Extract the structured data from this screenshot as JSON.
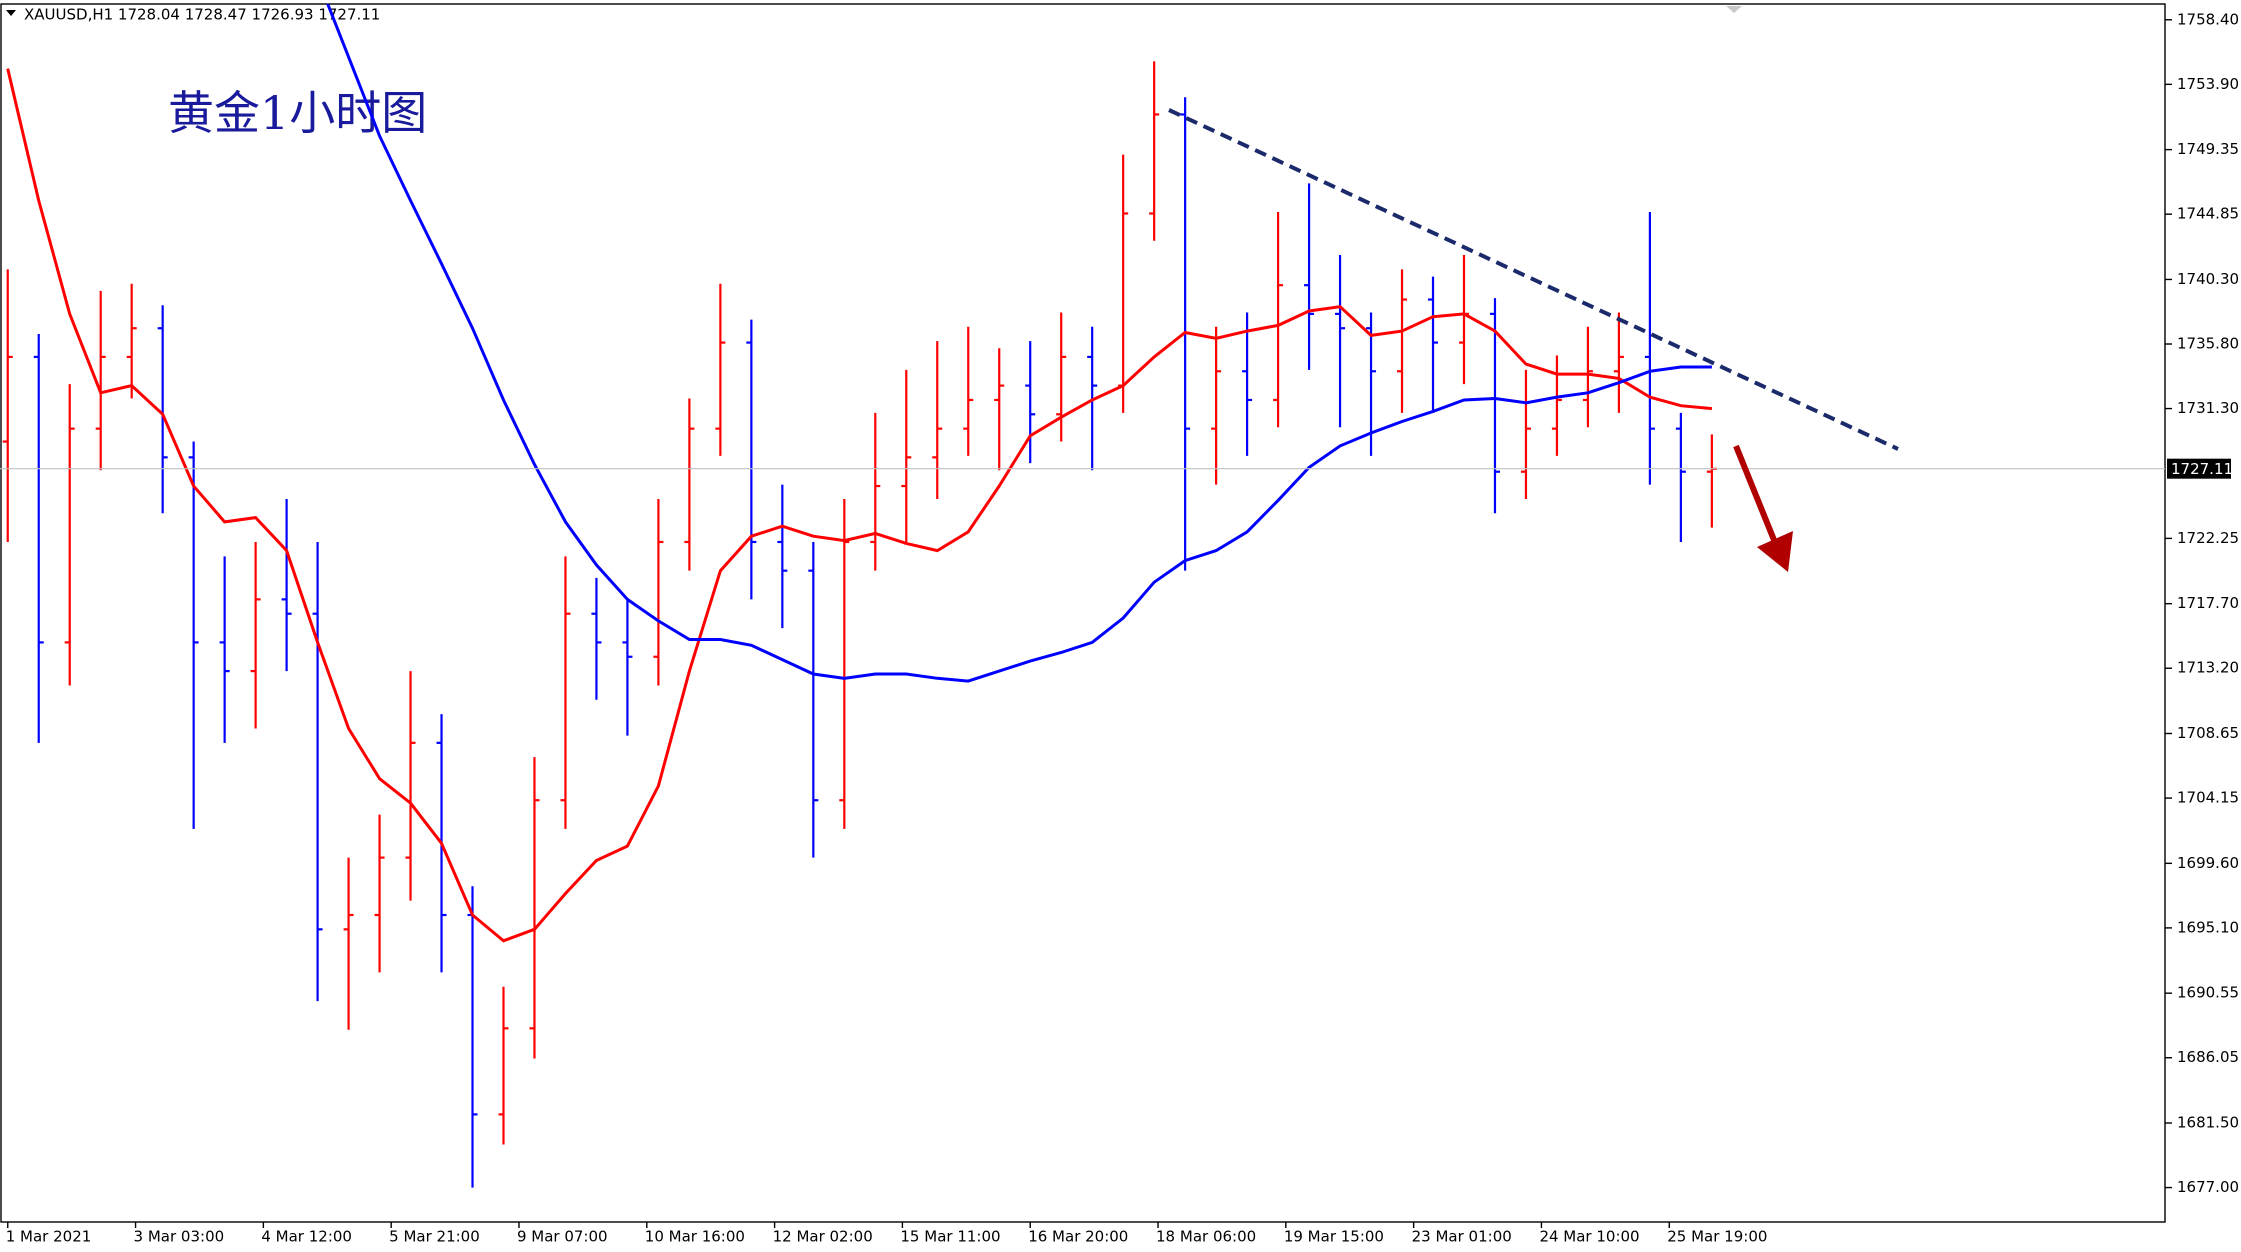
{
  "chart_data": {
    "type": "candlestick",
    "header": "XAUUSD,H1  1728.04 1728.47 1726.93 1727.11",
    "title": "黄金1小时图",
    "x": [
      0,
      8,
      16,
      24,
      32,
      40,
      48,
      56,
      64,
      72,
      80,
      88,
      96,
      104,
      112,
      120,
      128,
      136,
      144,
      152,
      160,
      168,
      176,
      184,
      192,
      200,
      208,
      216,
      224,
      232,
      240,
      248,
      256,
      264,
      272,
      280,
      288,
      296,
      304,
      312,
      320,
      328,
      336,
      344,
      352,
      360,
      368,
      376,
      384,
      392,
      400,
      408,
      416,
      424,
      432,
      440
    ],
    "open": [
      1729.0,
      1734.9,
      1715.0,
      1729.9,
      1734.9,
      1736.9,
      1727.9,
      1715.0,
      1713.0,
      1718.0,
      1717.0,
      1695.0,
      1696.0,
      1700.0,
      1708.0,
      1696.0,
      1682.1,
      1688.1,
      1704.0,
      1717.0,
      1715.0,
      1714.0,
      1722.0,
      1729.9,
      1735.9,
      1722.0,
      1720.0,
      1704.0,
      1722.0,
      1725.9,
      1727.9,
      1729.9,
      1731.9,
      1732.9,
      1730.9,
      1734.9,
      1732.9,
      1744.9,
      1751.8,
      1729.9,
      1733.9,
      1731.9,
      1739.9,
      1737.9,
      1736.9,
      1733.9,
      1738.9,
      1735.9,
      1737.9,
      1726.9,
      1729.9,
      1731.9,
      1733.9,
      1734.9,
      1729.9,
      1726.9
    ],
    "high": [
      1741.0,
      1736.5,
      1733.0,
      1739.5,
      1740.0,
      1738.5,
      1729.0,
      1721.0,
      1722.0,
      1725.0,
      1722.0,
      1700.0,
      1703.0,
      1713.0,
      1710.0,
      1698.0,
      1691.0,
      1707.0,
      1721.0,
      1719.5,
      1718.0,
      1725.0,
      1732.0,
      1740.0,
      1737.5,
      1726.0,
      1722.0,
      1725.0,
      1731.0,
      1734.0,
      1736.0,
      1737.0,
      1735.5,
      1736.0,
      1738.0,
      1737.0,
      1749.0,
      1755.5,
      1753.0,
      1737.0,
      1738.0,
      1745.0,
      1747.0,
      1742.0,
      1738.0,
      1741.0,
      1740.5,
      1742.0,
      1739.0,
      1734.0,
      1735.0,
      1737.0,
      1738.0,
      1745.0,
      1731.0,
      1729.5
    ],
    "low": [
      1722.0,
      1708.0,
      1712.0,
      1727.0,
      1732.0,
      1724.0,
      1702.0,
      1708.0,
      1709.0,
      1713.0,
      1690.0,
      1688.0,
      1692.0,
      1697.0,
      1692.0,
      1677.0,
      1680.0,
      1686.0,
      1702.0,
      1711.0,
      1708.5,
      1712.0,
      1720.0,
      1728.0,
      1718.0,
      1716.0,
      1700.0,
      1702.0,
      1720.0,
      1722.0,
      1725.0,
      1728.0,
      1727.0,
      1727.5,
      1729.0,
      1727.0,
      1731.0,
      1743.0,
      1720.0,
      1726.0,
      1728.0,
      1730.0,
      1734.0,
      1730.0,
      1728.0,
      1731.0,
      1731.0,
      1733.0,
      1724.0,
      1725.0,
      1728.0,
      1730.0,
      1731.0,
      1726.0,
      1722.0,
      1723.0
    ],
    "close": [
      1734.9,
      1715.0,
      1729.9,
      1734.9,
      1736.9,
      1727.9,
      1715.0,
      1713.0,
      1718.0,
      1717.0,
      1695.0,
      1696.0,
      1700.0,
      1708.0,
      1696.0,
      1682.1,
      1688.1,
      1704.0,
      1717.0,
      1715.0,
      1714.0,
      1722.0,
      1729.9,
      1735.9,
      1722.0,
      1720.0,
      1704.0,
      1722.0,
      1725.9,
      1727.9,
      1729.9,
      1731.9,
      1732.9,
      1730.9,
      1734.9,
      1732.9,
      1744.9,
      1751.8,
      1729.9,
      1733.9,
      1731.9,
      1739.9,
      1737.9,
      1736.9,
      1733.9,
      1738.9,
      1735.9,
      1737.9,
      1726.9,
      1729.9,
      1731.9,
      1733.9,
      1734.9,
      1729.9,
      1726.9,
      1727.1
    ],
    "up_color": "#ff0000",
    "down_color": "#0000ff",
    "series": [
      {
        "color": "#ff0000",
        "values": [
          1755.0,
          1745.8,
          1737.9,
          1732.4,
          1732.9,
          1730.9,
          1725.9,
          1723.4,
          1723.7,
          1721.4,
          1715.0,
          1709.0,
          1705.5,
          1703.8,
          1701.0,
          1696.0,
          1694.2,
          1695.0,
          1697.5,
          1699.8,
          1700.8,
          1705.0,
          1713.0,
          1720.0,
          1722.4,
          1723.1,
          1722.4,
          1722.1,
          1722.6,
          1721.9,
          1721.4,
          1722.7,
          1725.9,
          1729.4,
          1730.7,
          1731.9,
          1732.9,
          1734.9,
          1736.6,
          1736.2,
          1736.7,
          1737.1,
          1738.1,
          1738.4,
          1736.4,
          1736.7,
          1737.7,
          1737.9,
          1736.7,
          1734.4,
          1733.7,
          1733.7,
          1733.4,
          1732.1,
          1731.5,
          1731.3
        ]
      },
      {
        "color": "#0000ff",
        "values": [
          null,
          null,
          null,
          null,
          null,
          null,
          null,
          null,
          null,
          null,
          1761.3,
          1755.8,
          1750.3,
          1745.8,
          1741.4,
          1736.9,
          1731.9,
          1727.4,
          1723.4,
          1720.4,
          1718.0,
          1716.5,
          1715.2,
          1715.2,
          1714.8,
          1713.8,
          1712.8,
          1712.5,
          1712.8,
          1712.8,
          1712.5,
          1712.3,
          1713.0,
          1713.7,
          1714.3,
          1715.0,
          1716.7,
          1719.2,
          1720.7,
          1721.4,
          1722.7,
          1724.9,
          1727.2,
          1728.7,
          1729.6,
          1730.4,
          1731.1,
          1731.9,
          1732.0,
          1731.7,
          1732.1,
          1732.4,
          1733.1,
          1733.9,
          1734.2,
          1734.2
        ]
      }
    ],
    "last_price": 1727.11,
    "xlim": [
      -2,
      557
    ],
    "xticks": [
      {
        "value": 0,
        "label": "1 Mar 2021"
      },
      {
        "value": 33,
        "label": "3 Mar 03:00"
      },
      {
        "value": 66,
        "label": "4 Mar 12:00"
      },
      {
        "value": 99,
        "label": "5 Mar 21:00"
      },
      {
        "value": 132,
        "label": "9 Mar 07:00"
      },
      {
        "value": 165,
        "label": "10 Mar 16:00"
      },
      {
        "value": 198,
        "label": "12 Mar 02:00"
      },
      {
        "value": 231,
        "label": "15 Mar 11:00"
      },
      {
        "value": 264,
        "label": "16 Mar 20:00"
      },
      {
        "value": 297,
        "label": "18 Mar 06:00"
      },
      {
        "value": 330,
        "label": "19 Mar 15:00"
      },
      {
        "value": 363,
        "label": "23 Mar 01:00"
      },
      {
        "value": 396,
        "label": "24 Mar 10:00"
      },
      {
        "value": 429,
        "label": "25 Mar 19:00"
      }
    ],
    "ylim": [
      1674.6,
      1759.5
    ],
    "yticks": [
      {
        "value": 1758.4,
        "label": "1758.40"
      },
      {
        "value": 1753.9,
        "label": "1753.90"
      },
      {
        "value": 1749.35,
        "label": "1749.35"
      },
      {
        "value": 1744.85,
        "label": "1744.85"
      },
      {
        "value": 1740.3,
        "label": "1740.30"
      },
      {
        "value": 1735.8,
        "label": "1735.80"
      },
      {
        "value": 1731.3,
        "label": "1731.30"
      },
      {
        "value": 1722.25,
        "label": "1722.25"
      },
      {
        "value": 1717.7,
        "label": "1717.70"
      },
      {
        "value": 1713.2,
        "label": "1713.20"
      },
      {
        "value": 1708.65,
        "label": "1708.65"
      },
      {
        "value": 1704.15,
        "label": "1704.15"
      },
      {
        "value": 1699.6,
        "label": "1699.60"
      },
      {
        "value": 1695.1,
        "label": "1695.10"
      },
      {
        "value": 1690.55,
        "label": "1690.55"
      },
      {
        "value": 1686.05,
        "label": "1686.05"
      },
      {
        "value": 1681.5,
        "label": "1681.50"
      },
      {
        "value": 1677,
        "label": "1677.00"
      }
    ],
    "grid": false
  }
}
